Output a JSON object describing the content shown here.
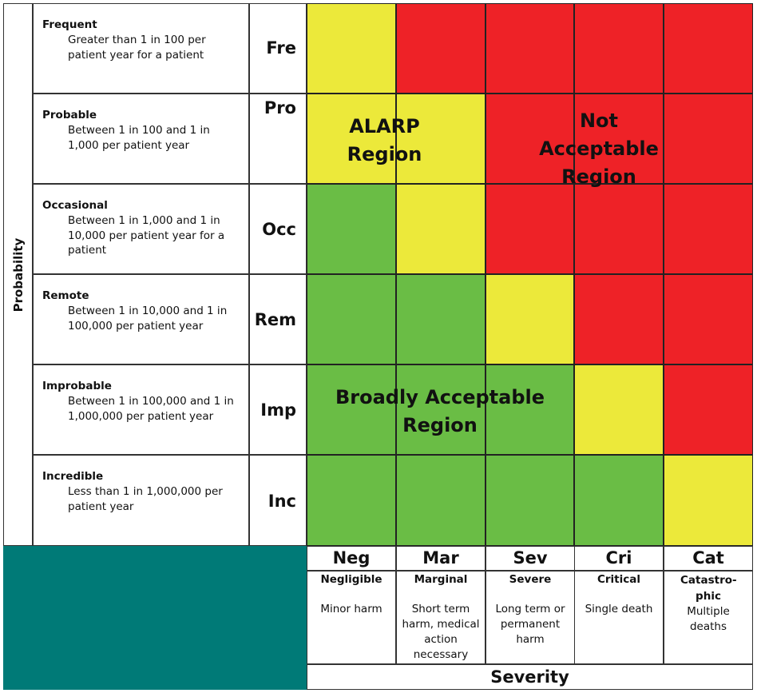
{
  "probability_axis_label": "Probability",
  "severity_axis_label": "Severity",
  "probability_levels": [
    {
      "name": "Frequent",
      "description": "Greater than 1 in 100 per patient year for a patient",
      "abbr": "Fre"
    },
    {
      "name": "Probable",
      "description": "Between 1 in 100 and 1 in 1,000 per patient year",
      "abbr": "Pro"
    },
    {
      "name": "Occasional",
      "description": "Between 1 in 1,000 and 1 in 10,000 per patient year for a patient",
      "abbr": "Occ"
    },
    {
      "name": "Remote",
      "description": "Between 1 in 10,000 and 1 in 100,000 per patient year",
      "abbr": "Rem"
    },
    {
      "name": "Improbable",
      "description": "Between 1 in 100,000 and 1 in 1,000,000 per patient year",
      "abbr": "Imp"
    },
    {
      "name": "Incredible",
      "description": "Less than 1 in 1,000,000 per patient year",
      "abbr": "Inc"
    }
  ],
  "severity_levels": [
    {
      "abbr": "Neg",
      "name": "Negligible",
      "description": "Minor harm"
    },
    {
      "abbr": "Mar",
      "name": "Marginal",
      "description": "Short term harm, medical action necessary"
    },
    {
      "abbr": "Sev",
      "name": "Severe",
      "description": "Long term or permanent harm"
    },
    {
      "abbr": "Cri",
      "name": "Critical",
      "description": "Single death"
    },
    {
      "abbr": "Cat",
      "name": "Catastro-phic",
      "description": "Multiple deaths"
    }
  ],
  "matrix": [
    [
      "yellow",
      "red",
      "red",
      "red",
      "red"
    ],
    [
      "yellow",
      "yellow",
      "red",
      "red",
      "red"
    ],
    [
      "green",
      "yellow",
      "red",
      "red",
      "red"
    ],
    [
      "green",
      "green",
      "yellow",
      "red",
      "red"
    ],
    [
      "green",
      "green",
      "green",
      "yellow",
      "red"
    ],
    [
      "green",
      "green",
      "green",
      "green",
      "yellow"
    ]
  ],
  "colors": {
    "yellow": "#ece93a",
    "red": "#ee2227",
    "green": "#6abd45",
    "corner": "#007a77"
  },
  "regions": {
    "alarp": {
      "line1": "ALARP",
      "line2": "Region"
    },
    "not_acceptable": {
      "line1": "Not",
      "line2": "Acceptable",
      "line3": "Region"
    },
    "broadly_acceptable": {
      "line1": "Broadly Acceptable",
      "line2": "Region"
    }
  }
}
